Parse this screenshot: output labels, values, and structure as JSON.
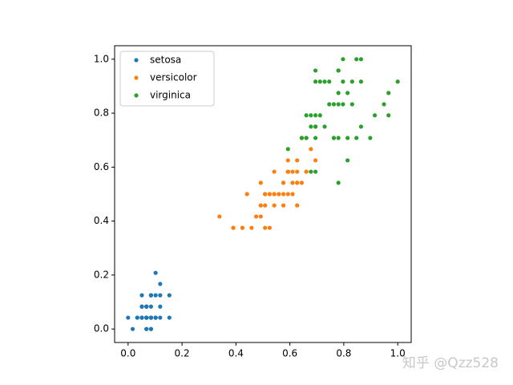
{
  "chart_data": {
    "type": "scatter",
    "xlim": [
      -0.05,
      1.05
    ],
    "ylim": [
      -0.05,
      1.05
    ],
    "xticks": [
      {
        "value": 0,
        "label": "0.0"
      },
      0.2,
      0.4,
      0.6,
      0.8,
      {
        "value": 1,
        "label": "1.0"
      }
    ],
    "yticks": [
      {
        "value": 0,
        "label": "0.0"
      },
      0.2,
      0.4,
      0.6,
      0.8,
      {
        "value": 1,
        "label": "1.0"
      }
    ],
    "legend": "upper left",
    "watermark": "知乎 @Qzz528",
    "series": [
      {
        "name": "setosa",
        "color": "#1f77b4",
        "x": [
          0.068,
          0.068,
          0.051,
          0.085,
          0.068,
          0.119,
          0.068,
          0.085,
          0.068,
          0.085,
          0.085,
          0.102,
          0.068,
          0.017,
          0.034,
          0.085,
          0.051,
          0.068,
          0.119,
          0.085,
          0.119,
          0.085,
          0,
          0.119,
          0.153,
          0.102,
          0.102,
          0.085,
          0.068,
          0.102,
          0.102,
          0.085,
          0.085,
          0.068,
          0.085,
          0.034,
          0.051,
          0.068,
          0.051,
          0.085,
          0.051,
          0.051,
          0.051,
          0.102,
          0.153,
          0.068,
          0.102,
          0.068,
          0.085,
          0.068
        ],
        "values": [
          0.042,
          0.042,
          0.042,
          0.042,
          0.042,
          0.125,
          0.083,
          0.042,
          0.042,
          0,
          0.042,
          0.042,
          0,
          0,
          0.042,
          0.125,
          0.125,
          0.083,
          0.083,
          0.083,
          0.042,
          0.125,
          0.042,
          0.167,
          0.042,
          0.042,
          0.125,
          0.042,
          0.042,
          0.042,
          0.042,
          0.125,
          0,
          0.042,
          0.042,
          0.042,
          0.042,
          0,
          0.042,
          0.042,
          0.083,
          0.083,
          0.042,
          0.208,
          0.125,
          0.083,
          0.042,
          0.042,
          0.042,
          0.042
        ]
      },
      {
        "name": "versicolor",
        "color": "#ff7f0e",
        "x": [
          0.627,
          0.593,
          0.661,
          0.508,
          0.61,
          0.593,
          0.627,
          0.39,
          0.61,
          0.492,
          0.424,
          0.542,
          0.508,
          0.627,
          0.441,
          0.576,
          0.593,
          0.525,
          0.593,
          0.492,
          0.644,
          0.508,
          0.661,
          0.627,
          0.559,
          0.576,
          0.644,
          0.678,
          0.593,
          0.424,
          0.475,
          0.458,
          0.492,
          0.695,
          0.593,
          0.593,
          0.627,
          0.576,
          0.525,
          0.508,
          0.576,
          0.61,
          0.508,
          0.39,
          0.542,
          0.542,
          0.542,
          0.559,
          0.339,
          0.525
        ],
        "values": [
          0.542,
          0.583,
          0.583,
          0.5,
          0.583,
          0.5,
          0.625,
          0.375,
          0.5,
          0.542,
          0.375,
          0.583,
          0.375,
          0.542,
          0.5,
          0.542,
          0.583,
          0.375,
          0.583,
          0.417,
          0.708,
          0.5,
          0.583,
          0.458,
          0.5,
          0.542,
          0.542,
          0.667,
          0.583,
          0.375,
          0.417,
          0.375,
          0.458,
          0.625,
          0.583,
          0.625,
          0.583,
          0.5,
          0.5,
          0.5,
          0.458,
          0.542,
          0.458,
          0.375,
          0.5,
          0.458,
          0.5,
          0.5,
          0.417,
          0.5
        ]
      },
      {
        "name": "virginica",
        "color": "#2ca02c",
        "x": [
          0.847,
          0.695,
          0.831,
          0.78,
          0.814,
          0.949,
          0.593,
          0.898,
          0.814,
          0.864,
          0.695,
          0.729,
          0.763,
          0.678,
          0.695,
          0.729,
          0.763,
          0.966,
          1,
          0.678,
          0.797,
          0.661,
          0.966,
          0.661,
          0.797,
          0.847,
          0.644,
          0.661,
          0.78,
          0.814,
          0.864,
          0.915,
          0.78,
          0.695,
          0.78,
          0.864,
          0.78,
          0.763,
          0.644,
          0.746,
          0.78,
          0.695,
          0.695,
          0.831,
          0.797,
          0.712,
          0.678,
          0.712,
          0.746,
          0.695
        ],
        "values": [
          1,
          0.75,
          0.833,
          0.708,
          0.875,
          0.833,
          0.667,
          0.708,
          0.708,
          1,
          0.792,
          0.75,
          0.833,
          0.792,
          0.958,
          0.917,
          0.708,
          0.875,
          0.917,
          0.583,
          0.917,
          0.792,
          0.792,
          0.708,
          0.833,
          0.708,
          0.708,
          0.708,
          0.833,
          0.625,
          0.75,
          0.792,
          0.875,
          0.583,
          0.542,
          0.917,
          0.958,
          0.708,
          0.708,
          0.833,
          0.958,
          0.917,
          0.75,
          0.917,
          1,
          0.917,
          0.75,
          0.792,
          0.917,
          0.708
        ]
      }
    ]
  }
}
